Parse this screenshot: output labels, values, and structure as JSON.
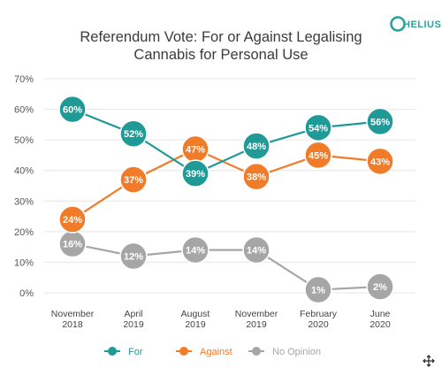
{
  "brand": {
    "logo_text": "HELIUS",
    "color": "#2aa39b"
  },
  "chart_data": {
    "type": "line",
    "title_lines": [
      "Referendum Vote: For or Against Legalising",
      "Cannabis for Personal Use"
    ],
    "categories": [
      [
        "November",
        "2018"
      ],
      [
        "April",
        "2019"
      ],
      [
        "August",
        "2019"
      ],
      [
        "November",
        "2019"
      ],
      [
        "February",
        "2020"
      ],
      [
        "June",
        "2020"
      ]
    ],
    "y_ticks": [
      "0%",
      "10%",
      "20%",
      "30%",
      "40%",
      "50%",
      "60%",
      "70%"
    ],
    "ylim": [
      0,
      70
    ],
    "grid": true,
    "legend_position": "bottom",
    "series": [
      {
        "name": "For",
        "color": "#1f9a96",
        "values": [
          60,
          52,
          39,
          48,
          54,
          56
        ],
        "labels": [
          "60%",
          "52%",
          "39%",
          "48%",
          "54%",
          "56%"
        ]
      },
      {
        "name": "Against",
        "color": "#f07c2a",
        "values": [
          24,
          37,
          47,
          38,
          45,
          43
        ],
        "labels": [
          "24%",
          "37%",
          "47%",
          "38%",
          "45%",
          "43%"
        ]
      },
      {
        "name": "No Opinion",
        "color": "#a6a6a6",
        "values": [
          16,
          12,
          14,
          14,
          1,
          2
        ],
        "labels": [
          "16%",
          "12%",
          "14%",
          "14%",
          "1%",
          "2%"
        ]
      }
    ]
  }
}
